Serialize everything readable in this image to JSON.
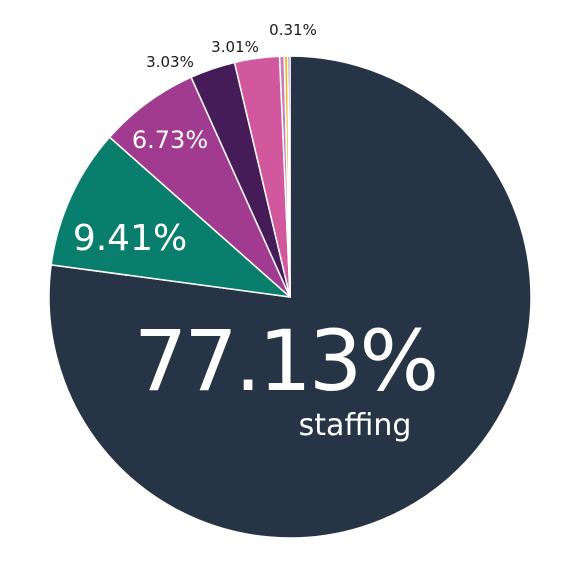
{
  "chart_data": {
    "type": "pie",
    "slices": [
      {
        "label": "77.13%",
        "value": 77.13,
        "caption": "staffing",
        "color": "#263445"
      },
      {
        "label": "9.41%",
        "value": 9.41,
        "color": "#0a7e6c"
      },
      {
        "label": "6.73%",
        "value": 6.73,
        "color": "#a03b8f"
      },
      {
        "label": "3.03%",
        "value": 3.03,
        "color": "#451b58"
      },
      {
        "label": "3.01%",
        "value": 3.01,
        "color": "#d2589e"
      },
      {
        "label": "0.31%",
        "value": 0.31,
        "color": "#c27eb8"
      },
      {
        "label": "",
        "value": 0.24,
        "color": "#f0b429"
      },
      {
        "label": "",
        "value": 0.14,
        "color": "#5a3d8c"
      }
    ]
  }
}
